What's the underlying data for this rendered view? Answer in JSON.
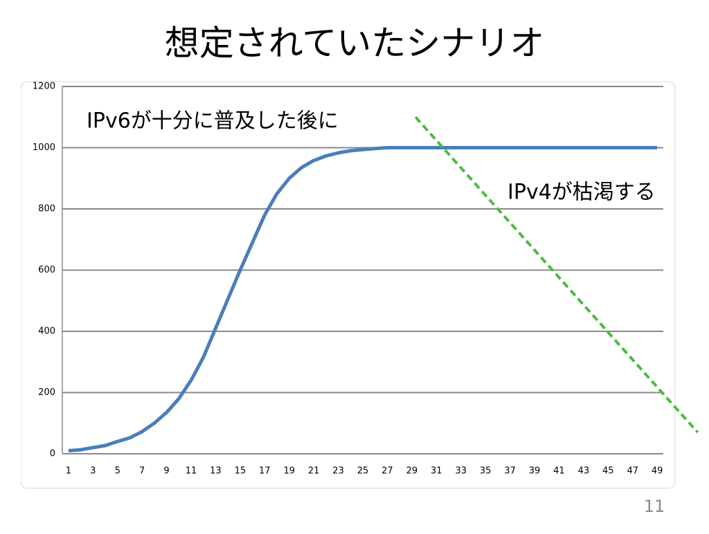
{
  "chart_data": {
    "type": "line",
    "title": "想定されていたシナリオ",
    "annotations": [
      "IPv6が十分に普及した後に",
      "IPv4が枯渇する"
    ],
    "page_number": "11",
    "categories": [
      1,
      null,
      3,
      null,
      5,
      null,
      7,
      null,
      9,
      null,
      11,
      null,
      13,
      null,
      15,
      null,
      17,
      null,
      19,
      null,
      21,
      null,
      23,
      null,
      25,
      null,
      27,
      null,
      29,
      null,
      31,
      null,
      33,
      null,
      35,
      null,
      37,
      null,
      39,
      null,
      41,
      null,
      43,
      null,
      45,
      null,
      47,
      null,
      49
    ],
    "series": [
      {
        "color": "#4a7ebb",
        "values": [
          10,
          13,
          20,
          27,
          40,
          52,
          72,
          100,
          135,
          180,
          240,
          315,
          410,
          505,
          600,
          690,
          780,
          850,
          900,
          935,
          958,
          973,
          983,
          990,
          994,
          997,
          1000,
          1000,
          1000,
          1000,
          1000,
          1000,
          1000,
          1000,
          1000,
          1000,
          1000,
          1000,
          1000,
          1000,
          1000,
          1000,
          1000,
          1000,
          1000,
          1000,
          1000,
          1000,
          1000
        ]
      },
      {
        "color": "#4cbb3f",
        "dashed": true,
        "x": [
          29.3,
          52.3
        ],
        "values": [
          1100,
          70
        ]
      }
    ],
    "ylim": [
      0,
      1200
    ],
    "yticks": [
      0,
      200,
      400,
      600,
      800,
      1000,
      1200
    ],
    "grid": true
  }
}
